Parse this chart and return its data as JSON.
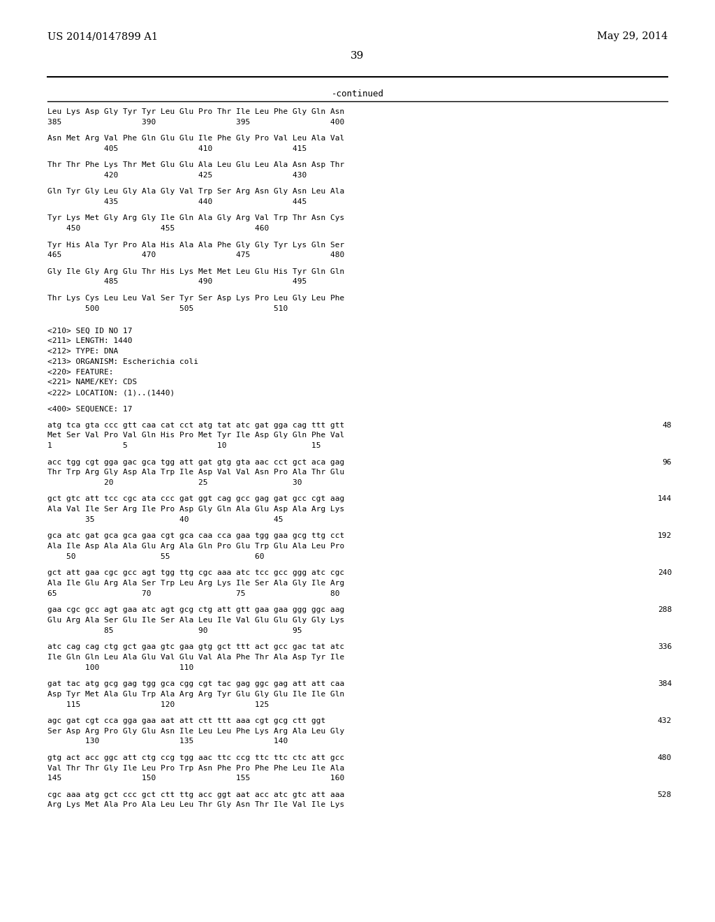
{
  "header_left": "US 2014/0147899 A1",
  "header_right": "May 29, 2014",
  "page_number": "39",
  "continued_label": "-continued",
  "background_color": "#ffffff",
  "text_color": "#000000",
  "lines": [
    {
      "text": "Leu Lys Asp Gly Tyr Tyr Leu Glu Pro Thr Ile Leu Phe Gly Gln Asn",
      "type": "aa"
    },
    {
      "text": "385                 390                 395                 400",
      "type": "num"
    },
    {
      "text": "",
      "type": "blank"
    },
    {
      "text": "Asn Met Arg Val Phe Gln Glu Glu Ile Phe Gly Pro Val Leu Ala Val",
      "type": "aa"
    },
    {
      "text": "            405                 410                 415",
      "type": "num"
    },
    {
      "text": "",
      "type": "blank"
    },
    {
      "text": "Thr Thr Phe Lys Thr Met Glu Glu Ala Leu Glu Leu Ala Asn Asp Thr",
      "type": "aa"
    },
    {
      "text": "            420                 425                 430",
      "type": "num"
    },
    {
      "text": "",
      "type": "blank"
    },
    {
      "text": "Gln Tyr Gly Leu Gly Ala Gly Val Trp Ser Arg Asn Gly Asn Leu Ala",
      "type": "aa"
    },
    {
      "text": "            435                 440                 445",
      "type": "num"
    },
    {
      "text": "",
      "type": "blank"
    },
    {
      "text": "Tyr Lys Met Gly Arg Gly Ile Gln Ala Gly Arg Val Trp Thr Asn Cys",
      "type": "aa"
    },
    {
      "text": "    450                 455                 460",
      "type": "num"
    },
    {
      "text": "",
      "type": "blank"
    },
    {
      "text": "Tyr His Ala Tyr Pro Ala His Ala Ala Phe Gly Gly Tyr Lys Gln Ser",
      "type": "aa"
    },
    {
      "text": "465                 470                 475                 480",
      "type": "num"
    },
    {
      "text": "",
      "type": "blank"
    },
    {
      "text": "Gly Ile Gly Arg Glu Thr His Lys Met Met Leu Glu His Tyr Gln Gln",
      "type": "aa"
    },
    {
      "text": "            485                 490                 495",
      "type": "num"
    },
    {
      "text": "",
      "type": "blank"
    },
    {
      "text": "Thr Lys Cys Leu Leu Val Ser Tyr Ser Asp Lys Pro Leu Gly Leu Phe",
      "type": "aa"
    },
    {
      "text": "        500                 505                 510",
      "type": "num"
    },
    {
      "text": "",
      "type": "blank"
    },
    {
      "text": "",
      "type": "blank"
    },
    {
      "text": "<210> SEQ ID NO 17",
      "type": "meta"
    },
    {
      "text": "<211> LENGTH: 1440",
      "type": "meta"
    },
    {
      "text": "<212> TYPE: DNA",
      "type": "meta"
    },
    {
      "text": "<213> ORGANISM: Escherichia coli",
      "type": "meta"
    },
    {
      "text": "<220> FEATURE:",
      "type": "meta"
    },
    {
      "text": "<221> NAME/KEY: CDS",
      "type": "meta"
    },
    {
      "text": "<222> LOCATION: (1)..(1440)",
      "type": "meta"
    },
    {
      "text": "",
      "type": "blank"
    },
    {
      "text": "<400> SEQUENCE: 17",
      "type": "meta"
    },
    {
      "text": "",
      "type": "blank"
    },
    {
      "text": "atg tca gta ccc gtt caa cat cct atg tat atc gat gga cag ttt gtt",
      "type": "dna",
      "num": "48"
    },
    {
      "text": "Met Ser Val Pro Val Gln His Pro Met Tyr Ile Asp Gly Gln Phe Val",
      "type": "aa"
    },
    {
      "text": "1               5                   10                  15",
      "type": "num"
    },
    {
      "text": "",
      "type": "blank"
    },
    {
      "text": "acc tgg cgt gga gac gca tgg att gat gtg gta aac cct gct aca gag",
      "type": "dna",
      "num": "96"
    },
    {
      "text": "Thr Trp Arg Gly Asp Ala Trp Ile Asp Val Val Asn Pro Ala Thr Glu",
      "type": "aa"
    },
    {
      "text": "            20                  25                  30",
      "type": "num"
    },
    {
      "text": "",
      "type": "blank"
    },
    {
      "text": "gct gtc att tcc cgc ata ccc gat ggt cag gcc gag gat gcc cgt aag",
      "type": "dna",
      "num": "144"
    },
    {
      "text": "Ala Val Ile Ser Arg Ile Pro Asp Gly Gln Ala Glu Asp Ala Arg Lys",
      "type": "aa"
    },
    {
      "text": "        35                  40                  45",
      "type": "num"
    },
    {
      "text": "",
      "type": "blank"
    },
    {
      "text": "gca atc gat gca gca gaa cgt gca caa cca gaa tgg gaa gcg ttg cct",
      "type": "dna",
      "num": "192"
    },
    {
      "text": "Ala Ile Asp Ala Ala Glu Arg Ala Gln Pro Glu Trp Glu Ala Leu Pro",
      "type": "aa"
    },
    {
      "text": "    50                  55                  60",
      "type": "num"
    },
    {
      "text": "",
      "type": "blank"
    },
    {
      "text": "gct att gaa cgc gcc agt tgg ttg cgc aaa atc tcc gcc ggg atc cgc",
      "type": "dna",
      "num": "240"
    },
    {
      "text": "Ala Ile Glu Arg Ala Ser Trp Leu Arg Lys Ile Ser Ala Gly Ile Arg",
      "type": "aa"
    },
    {
      "text": "65                  70                  75                  80",
      "type": "num"
    },
    {
      "text": "",
      "type": "blank"
    },
    {
      "text": "gaa cgc gcc agt gaa atc agt gcg ctg att gtt gaa gaa ggg ggc aag",
      "type": "dna",
      "num": "288"
    },
    {
      "text": "Glu Arg Ala Ser Glu Ile Ser Ala Leu Ile Val Glu Glu Gly Gly Lys",
      "type": "aa"
    },
    {
      "text": "            85                  90                  95",
      "type": "num"
    },
    {
      "text": "",
      "type": "blank"
    },
    {
      "text": "atc cag cag ctg gct gaa gtc gaa gtg gct ttt act gcc gac tat atc",
      "type": "dna",
      "num": "336"
    },
    {
      "text": "Ile Gln Gln Leu Ala Glu Val Glu Val Ala Phe Thr Ala Asp Tyr Ile",
      "type": "aa"
    },
    {
      "text": "        100                 110",
      "type": "num"
    },
    {
      "text": "",
      "type": "blank"
    },
    {
      "text": "gat tac atg gcg gag tgg gca cgg cgt tac gag ggc gag att att caa",
      "type": "dna",
      "num": "384"
    },
    {
      "text": "Asp Tyr Met Ala Glu Trp Ala Arg Arg Tyr Glu Gly Glu Ile Ile Gln",
      "type": "aa"
    },
    {
      "text": "    115                 120                 125",
      "type": "num"
    },
    {
      "text": "",
      "type": "blank"
    },
    {
      "text": "agc gat cgt cca gga gaa aat att ctt ttt aaa cgt gcg ctt ggt",
      "type": "dna",
      "num": "432"
    },
    {
      "text": "Ser Asp Arg Pro Gly Glu Asn Ile Leu Leu Phe Lys Arg Ala Leu Gly",
      "type": "aa"
    },
    {
      "text": "        130                 135                 140",
      "type": "num"
    },
    {
      "text": "",
      "type": "blank"
    },
    {
      "text": "gtg act acc ggc att ctg ccg tgg aac ttc ccg ttc ttc ctc att gcc",
      "type": "dna",
      "num": "480"
    },
    {
      "text": "Val Thr Thr Gly Ile Leu Pro Trp Asn Phe Pro Phe Phe Leu Ile Ala",
      "type": "aa"
    },
    {
      "text": "145                 150                 155                 160",
      "type": "num"
    },
    {
      "text": "",
      "type": "blank"
    },
    {
      "text": "cgc aaa atg gct ccc gct ctt ttg acc ggt aat acc atc gtc att aaa",
      "type": "dna",
      "num": "528"
    },
    {
      "text": "Arg Lys Met Ala Pro Ala Leu Leu Thr Gly Asn Thr Ile Val Ile Lys",
      "type": "aa"
    }
  ]
}
